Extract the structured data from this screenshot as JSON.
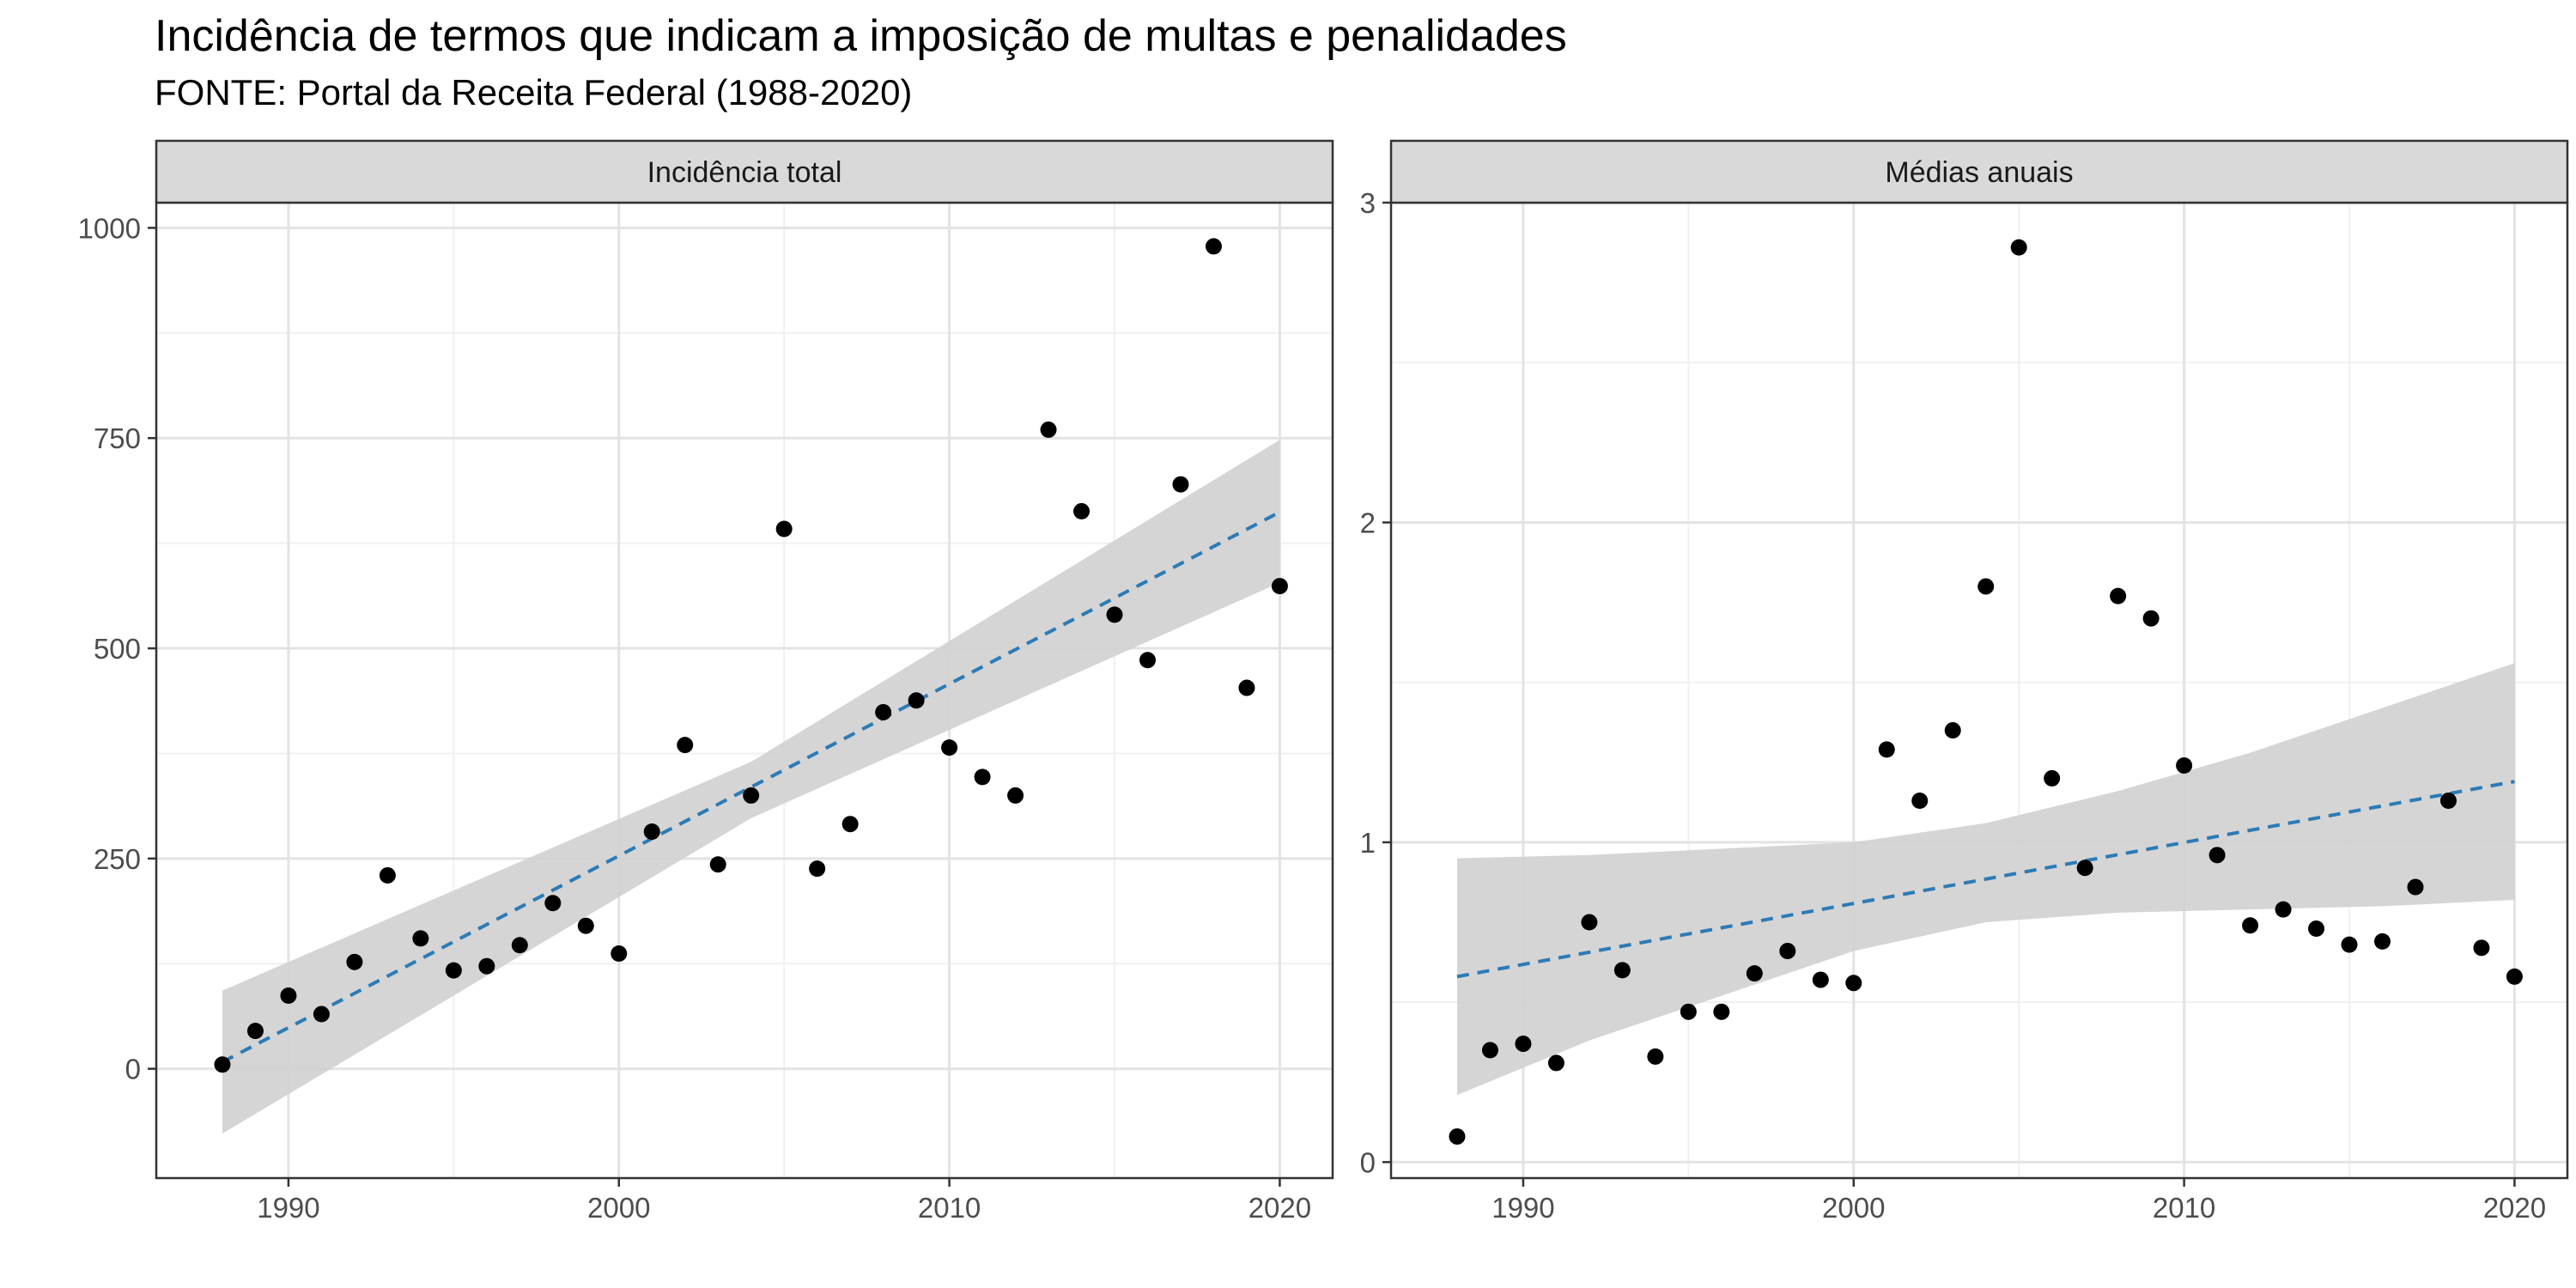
{
  "title": "Incidência de termos que indicam a imposição de multas e penalidades",
  "subtitle": "FONTE: Portal da Receita Federal (1988-2020)",
  "colors": {
    "point": "#000000",
    "trend": "#2c7bb6",
    "band": "#d0d0d0",
    "strip": "#d9d9d9",
    "grid_major": "#e3e3e3",
    "grid_minor": "#f0f0f0"
  },
  "chart_data": [
    {
      "type": "scatter",
      "panel": "Incidência total",
      "x_ticks": [
        1990,
        2000,
        2010,
        2020
      ],
      "y_ticks": [
        0,
        250,
        500,
        750,
        1000
      ],
      "xlim": [
        1986.0,
        2021.6
      ],
      "ylim": [
        -130,
        1030
      ],
      "points": [
        {
          "x": 1988,
          "y": 5
        },
        {
          "x": 1989,
          "y": 45
        },
        {
          "x": 1990,
          "y": 87
        },
        {
          "x": 1991,
          "y": 65
        },
        {
          "x": 1992,
          "y": 127
        },
        {
          "x": 1993,
          "y": 230
        },
        {
          "x": 1994,
          "y": 155
        },
        {
          "x": 1995,
          "y": 117
        },
        {
          "x": 1996,
          "y": 122
        },
        {
          "x": 1997,
          "y": 147
        },
        {
          "x": 1998,
          "y": 197
        },
        {
          "x": 1999,
          "y": 170
        },
        {
          "x": 2000,
          "y": 137
        },
        {
          "x": 2001,
          "y": 282
        },
        {
          "x": 2002,
          "y": 385
        },
        {
          "x": 2003,
          "y": 243
        },
        {
          "x": 2004,
          "y": 325
        },
        {
          "x": 2005,
          "y": 642
        },
        {
          "x": 2006,
          "y": 238
        },
        {
          "x": 2007,
          "y": 291
        },
        {
          "x": 2008,
          "y": 424
        },
        {
          "x": 2009,
          "y": 438
        },
        {
          "x": 2010,
          "y": 382
        },
        {
          "x": 2011,
          "y": 347
        },
        {
          "x": 2012,
          "y": 325
        },
        {
          "x": 2013,
          "y": 760
        },
        {
          "x": 2014,
          "y": 663
        },
        {
          "x": 2015,
          "y": 540
        },
        {
          "x": 2016,
          "y": 486
        },
        {
          "x": 2017,
          "y": 695
        },
        {
          "x": 2018,
          "y": 978
        },
        {
          "x": 2019,
          "y": 453
        },
        {
          "x": 2020,
          "y": 574
        }
      ],
      "trend": {
        "x": [
          1988,
          2020
        ],
        "y": [
          8,
          662
        ]
      },
      "band": {
        "x": [
          1988,
          2004,
          2020
        ],
        "lower": [
          -77,
          298,
          578
        ],
        "upper": [
          93,
          365,
          748
        ]
      }
    },
    {
      "type": "scatter",
      "panel": "Médias anuais",
      "x_ticks": [
        1990,
        2000,
        2010,
        2020
      ],
      "y_ticks": [
        0,
        1,
        2,
        3
      ],
      "xlim": [
        1986.0,
        2021.6
      ],
      "ylim": [
        -0.05,
        3.0
      ],
      "points": [
        {
          "x": 1988,
          "y": 0.08
        },
        {
          "x": 1989,
          "y": 0.35
        },
        {
          "x": 1990,
          "y": 0.37
        },
        {
          "x": 1991,
          "y": 0.31
        },
        {
          "x": 1992,
          "y": 0.75
        },
        {
          "x": 1993,
          "y": 0.6
        },
        {
          "x": 1994,
          "y": 0.33
        },
        {
          "x": 1995,
          "y": 0.47
        },
        {
          "x": 1996,
          "y": 0.47
        },
        {
          "x": 1997,
          "y": 0.59
        },
        {
          "x": 1998,
          "y": 0.66
        },
        {
          "x": 1999,
          "y": 0.57
        },
        {
          "x": 2000,
          "y": 0.56
        },
        {
          "x": 2001,
          "y": 1.29
        },
        {
          "x": 2002,
          "y": 1.13
        },
        {
          "x": 2003,
          "y": 1.35
        },
        {
          "x": 2004,
          "y": 1.8
        },
        {
          "x": 2005,
          "y": 2.86
        },
        {
          "x": 2006,
          "y": 1.2
        },
        {
          "x": 2007,
          "y": 0.92
        },
        {
          "x": 2008,
          "y": 1.77
        },
        {
          "x": 2009,
          "y": 1.7
        },
        {
          "x": 2010,
          "y": 1.24
        },
        {
          "x": 2011,
          "y": 0.96
        },
        {
          "x": 2012,
          "y": 0.74
        },
        {
          "x": 2013,
          "y": 0.79
        },
        {
          "x": 2014,
          "y": 0.73
        },
        {
          "x": 2015,
          "y": 0.68
        },
        {
          "x": 2016,
          "y": 0.69
        },
        {
          "x": 2017,
          "y": 0.86
        },
        {
          "x": 2018,
          "y": 1.13
        },
        {
          "x": 2019,
          "y": 0.67
        },
        {
          "x": 2020,
          "y": 0.58
        }
      ],
      "trend": {
        "x": [
          1988,
          2020
        ],
        "y": [
          0.58,
          1.19
        ]
      },
      "band": {
        "x": [
          1988,
          1992,
          1996,
          2000,
          2004,
          2008,
          2012,
          2016,
          2020
        ],
        "lower": [
          0.21,
          0.38,
          0.52,
          0.66,
          0.75,
          0.78,
          0.79,
          0.8,
          0.82
        ],
        "upper": [
          0.95,
          0.96,
          0.98,
          1.0,
          1.06,
          1.16,
          1.28,
          1.42,
          1.56
        ]
      }
    }
  ]
}
